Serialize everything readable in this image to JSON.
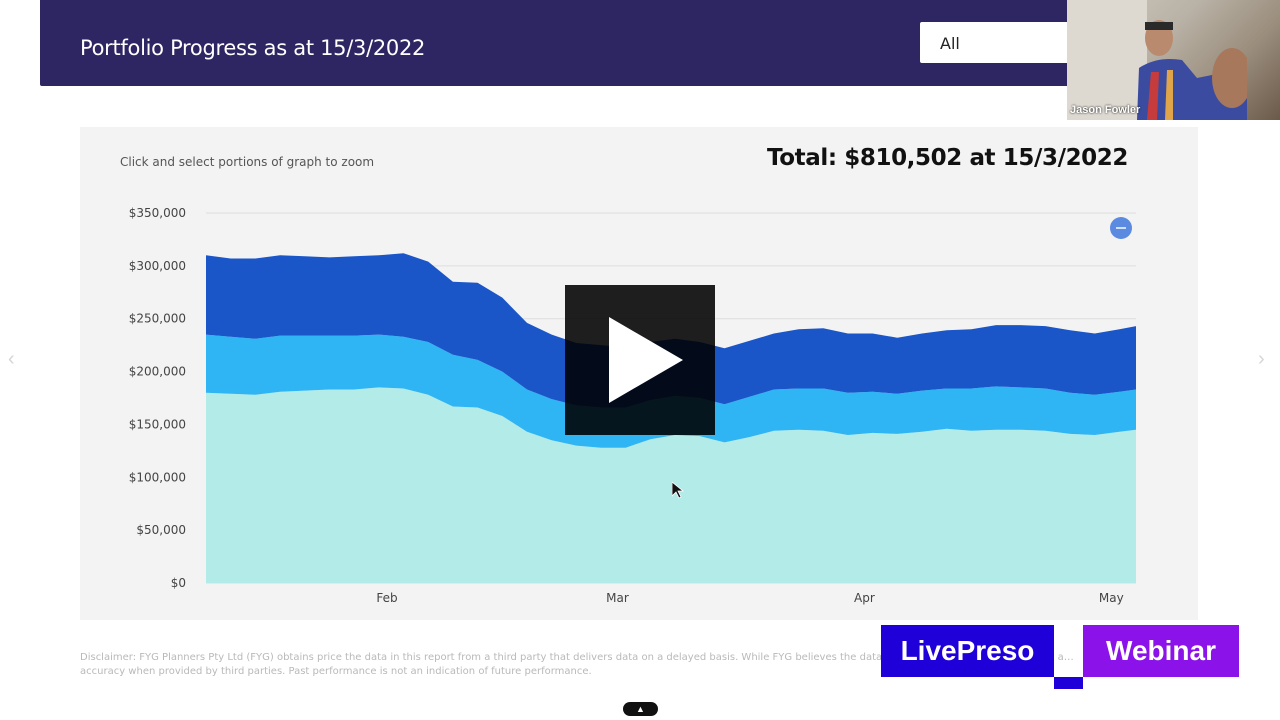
{
  "header": {
    "title": "Portfolio Progress as at 15/3/2022",
    "range_select": "All"
  },
  "webcam": {
    "name": "Jason Fowler"
  },
  "panel": {
    "hint": "Click and select portions of graph to zoom",
    "total": "Total: $810,502 at 15/3/2022"
  },
  "disclaimer": "Disclaimer: FYG Planners Pty Ltd (FYG) obtains price the data in this report from a third party that delivers data on a delayed basis. While FYG believes the data to be accurate and end… …ata, it a… accuracy when provided by third parties. Past performance is not an indication of future performance.",
  "branding": {
    "left": "LivePreso",
    "right": "Webinar"
  },
  "colors": {
    "header_bg": "#2e2563",
    "layer_top": "#1a56c8",
    "layer_mid": "#2fb4f4",
    "layer_base": "#b3ebe9",
    "brand_blue": "#1f00d9",
    "brand_purple": "#8b12e8"
  },
  "icons": {
    "zoom_reset": "minus-circle-icon",
    "play": "play-icon",
    "prev": "chevron-left-icon",
    "next": "chevron-right-icon",
    "collapse": "chevron-up-icon"
  },
  "chart_data": {
    "type": "area",
    "stacked": true,
    "title": "",
    "xlabel": "",
    "ylabel": "",
    "ylim": [
      0,
      350000
    ],
    "y_ticks": [
      "$0",
      "$50,000",
      "$100,000",
      "$150,000",
      "$200,000",
      "$250,000",
      "$300,000",
      "$350,000"
    ],
    "y_tick_values": [
      0,
      50000,
      100000,
      150000,
      200000,
      250000,
      300000,
      350000
    ],
    "x_ticks": [
      "Feb",
      "Mar",
      "Apr",
      "May"
    ],
    "x_tick_days": [
      22,
      50,
      80,
      110
    ],
    "x_day_range": [
      0,
      113
    ],
    "grid": true,
    "x_days": [
      0,
      3,
      6,
      9,
      12,
      15,
      18,
      21,
      24,
      27,
      30,
      33,
      36,
      39,
      42,
      45,
      48,
      51,
      54,
      57,
      60,
      63,
      66,
      69,
      72,
      75,
      78,
      81,
      84,
      87,
      90,
      93,
      96,
      99,
      102,
      105,
      108,
      111,
      113
    ],
    "series": [
      {
        "values": [
          180000,
          179000,
          178000,
          181000,
          182000,
          183000,
          183000,
          185000,
          184000,
          178000,
          167000,
          166000,
          158000,
          143000,
          135000,
          130000,
          128000,
          128000,
          136000,
          140000,
          139000,
          133000,
          138000,
          144000,
          145000,
          144000,
          140000,
          142000,
          141000,
          143000,
          146000,
          144000,
          145000,
          145000,
          144000,
          141000,
          140000,
          143000,
          145000
        ]
      },
      {
        "values": [
          55000,
          54000,
          53000,
          53000,
          52000,
          51000,
          51000,
          50000,
          49000,
          50000,
          49000,
          45000,
          42000,
          40000,
          39000,
          38000,
          38000,
          38000,
          37000,
          37000,
          36000,
          36000,
          38000,
          39000,
          39000,
          40000,
          40000,
          39000,
          38000,
          39000,
          38000,
          40000,
          41000,
          40000,
          40000,
          39000,
          38000,
          38000,
          38000
        ]
      },
      {
        "values": [
          75000,
          74000,
          76000,
          76000,
          75000,
          74000,
          75000,
          75000,
          79000,
          76000,
          69000,
          73000,
          70000,
          63000,
          61000,
          59000,
          59000,
          57000,
          55000,
          54000,
          53000,
          53000,
          53000,
          53000,
          56000,
          57000,
          56000,
          55000,
          53000,
          54000,
          55000,
          56000,
          58000,
          59000,
          59000,
          59000,
          58000,
          59000,
          60000
        ]
      }
    ]
  }
}
